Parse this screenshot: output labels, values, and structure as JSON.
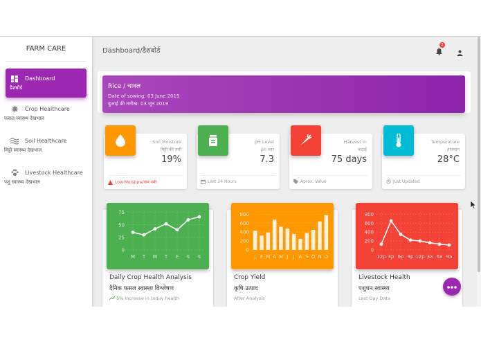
{
  "sidebar": {
    "brand": "FARM CARE",
    "items": [
      {
        "label": "Dashboard",
        "sub": "डैशबोर्ड",
        "icon": "dashboard-icon"
      },
      {
        "label": "Crop Healthcare",
        "sub": "फसल स्वास्थ्य देखभाल",
        "icon": "leaf-icon"
      },
      {
        "label": "Soil Healthcare",
        "sub": "मिट्टी स्वास्थ्य देखभाल",
        "icon": "waves-icon"
      },
      {
        "label": "Livestock Healthcare",
        "sub": "पशु स्वास्थ्य देखभाल",
        "icon": "paw-icon"
      }
    ]
  },
  "header": {
    "breadcrumb": "Dashboard/डैशबोर्ड",
    "notification_count": "2"
  },
  "banner": {
    "title": "Rice / चावल",
    "sowing_en": "Date of sowing: 03 June 2019",
    "sowing_hi": "बुआई की तारीख: 03 जून 2019"
  },
  "stats": [
    {
      "label": "Soil Moisture",
      "label_hi": "मिट्टी की नमी",
      "value": "19%",
      "footer": "Low Moisture/कम नमी",
      "color": "#ff9800",
      "footer_color": "#9c27b0"
    },
    {
      "label": "pH Level",
      "label_hi": "ph स्तर",
      "value": "7.3",
      "footer": "Last 24 Hours",
      "color": "#4caf50",
      "footer_color": "#999999"
    },
    {
      "label": "Harvest In",
      "label_hi": "कटाई",
      "value": "75 days",
      "footer": "Aprox. Value",
      "color": "#f44336",
      "footer_color": "#999999"
    },
    {
      "label": "Temperature",
      "label_hi": "तापमान",
      "value": "28°C",
      "footer": "Just Updated",
      "color": "#00bcd4",
      "footer_color": "#999999"
    }
  ],
  "cards": [
    {
      "title": "Daily Crop Health Analysis",
      "title_hi": "दैनिक फसल स्वास्थ्य विश्लेषण",
      "footer_pct": "5%",
      "footer_rest": " increase in today health",
      "color": "#4caf50"
    },
    {
      "title": "Crop Yield",
      "title_hi": "कृषि उत्पाद",
      "footer_rest": "After Analysis",
      "color": "#ff9800"
    },
    {
      "title": "Livestock Health",
      "title_hi": "पशुधन स्वास्थ्य",
      "footer_rest": "Last Day Data",
      "color": "#f44336"
    }
  ],
  "chart_data": [
    {
      "type": "line",
      "categories": [
        "M",
        "T",
        "W",
        "T",
        "F",
        "S",
        "S"
      ],
      "values": [
        35,
        30,
        42,
        52,
        40,
        60,
        66
      ],
      "yticks": [
        "75",
        "50",
        "25",
        "0"
      ],
      "ylim": [
        0,
        80
      ]
    },
    {
      "type": "bar",
      "categories": [
        "J",
        "F",
        "M",
        "A",
        "M",
        "J",
        "J",
        "A",
        "S",
        "O",
        "N",
        "D"
      ],
      "values": [
        430,
        320,
        390,
        680,
        520,
        480,
        360,
        250,
        380,
        450,
        640,
        780
      ],
      "yticks": [
        "800",
        "600",
        "400",
        "200",
        "0"
      ],
      "ylim": [
        0,
        900
      ]
    },
    {
      "type": "line",
      "categories": [
        "12p",
        "3p",
        "6p",
        "9p",
        "12p",
        "3a",
        "6a",
        "9a"
      ],
      "values": [
        130,
        650,
        350,
        220,
        200,
        160,
        130,
        110
      ],
      "yticks": [
        "800",
        "600",
        "400",
        "200",
        "0"
      ],
      "ylim": [
        0,
        900
      ]
    }
  ]
}
